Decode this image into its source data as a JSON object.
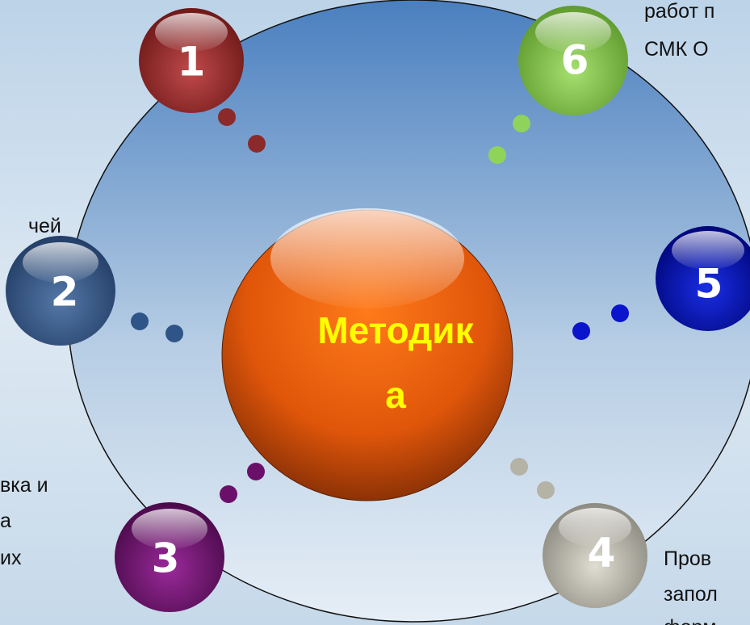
{
  "center": {
    "lines": [
      "Методик",
      "а"
    ]
  },
  "nodes": [
    {
      "label": "1"
    },
    {
      "label": "2"
    },
    {
      "label": "3"
    },
    {
      "label": "4"
    },
    {
      "label": "5"
    },
    {
      "label": "6"
    }
  ],
  "side_texts": {
    "top_right": [
      "работ п",
      "СМК О"
    ],
    "left": [
      "чей"
    ],
    "bottom_left": [
      "вка и",
      "а",
      "их"
    ],
    "bottom_right": [
      "Пров",
      "запол",
      "форм"
    ]
  }
}
